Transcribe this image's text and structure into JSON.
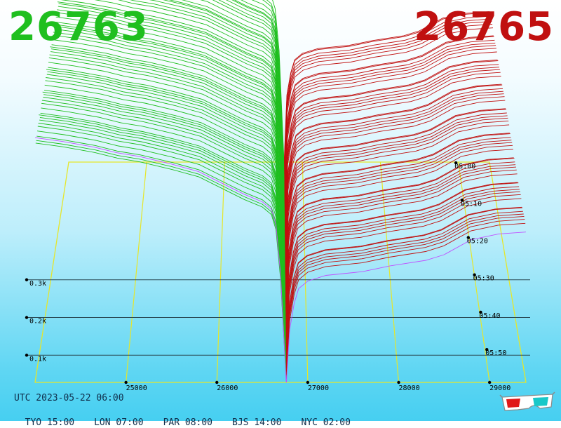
{
  "header": {
    "bid_price": "26763",
    "ask_price": "26765"
  },
  "colors": {
    "bid": "#1fbf1f",
    "ask": "#c01010",
    "grid": "#e6e62a",
    "depth_gridline": "#2a4a55",
    "latest_bid_line": "#c050ff",
    "latest_ask_line": "#c050ff"
  },
  "footer": {
    "utc": "UTC 2023-05-22 06:00",
    "timezones": [
      "TYO 15:00",
      "LON 07:00",
      "PAR 08:00",
      "BJS 14:00",
      "NYC 02:00"
    ]
  },
  "icons": {
    "glasses": "3d-glasses-icon"
  },
  "chart_data": {
    "type": "area",
    "view": "3d-depth-history",
    "x": {
      "label": "",
      "range": [
        24000,
        29400
      ],
      "ticks": [
        25000,
        26000,
        27000,
        28000,
        29000
      ],
      "tick_labels": [
        "25000",
        "26000",
        "27000",
        "28000",
        "29000"
      ]
    },
    "y": {
      "label": "",
      "range": [
        0,
        800
      ],
      "ticks": [
        100,
        200,
        300
      ],
      "tick_labels": [
        "0.1k",
        "0.2k",
        "0.3k"
      ]
    },
    "z": {
      "label": "",
      "ticks": [
        "05:00",
        "05:10",
        "05:20",
        "05:30",
        "05:40",
        "05:50"
      ],
      "snapshots": 64
    },
    "mid_price": 26764,
    "series": [
      {
        "name": "",
        "side": "bid",
        "x": [
          24000,
          24300,
          24650,
          24900,
          25150,
          25500,
          25800,
          26050,
          26300,
          26500,
          26600,
          26650,
          26700,
          26763
        ],
        "cumulative": [
          690,
          680,
          665,
          650,
          640,
          620,
          600,
          570,
          540,
          520,
          500,
          460,
          330,
          0
        ]
      },
      {
        "name": "",
        "side": "ask",
        "x": [
          26765,
          26800,
          26850,
          26900,
          27000,
          27200,
          27600,
          27900,
          28300,
          28500,
          28800,
          29100,
          29400
        ],
        "cumulative": [
          0,
          180,
          250,
          290,
          310,
          325,
          335,
          350,
          365,
          380,
          420,
          435,
          440
        ]
      }
    ]
  }
}
